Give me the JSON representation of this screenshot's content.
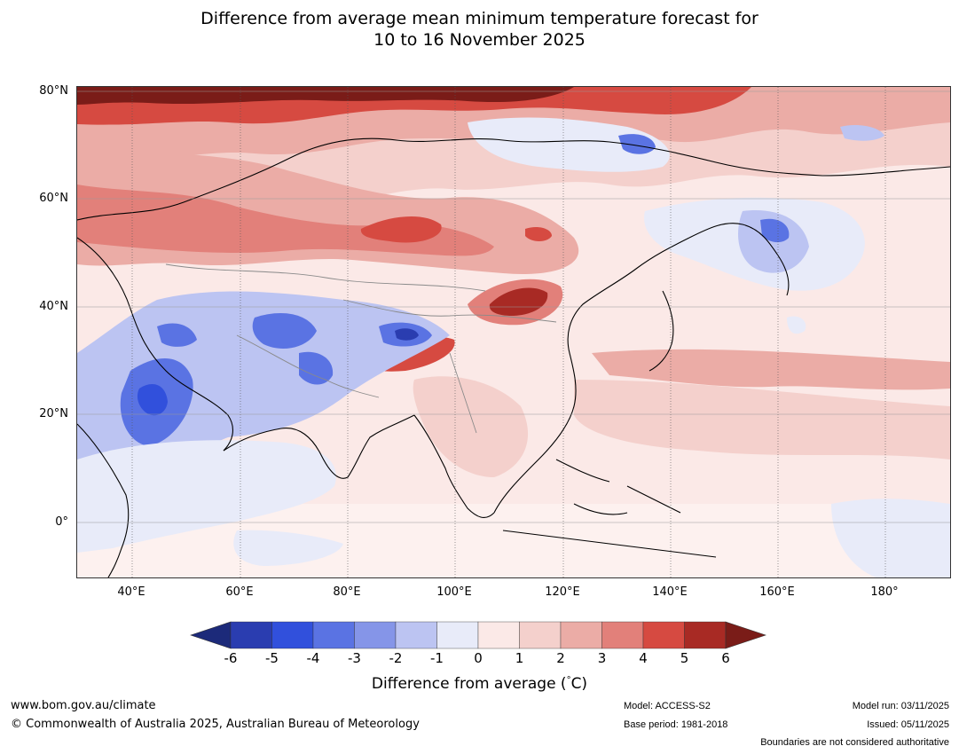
{
  "title": {
    "line1": "Difference from average mean minimum temperature forecast for",
    "line2": "10 to 16 November 2025"
  },
  "map": {
    "lat_labels": [
      "80°N",
      "60°N",
      "40°N",
      "20°N",
      "0°"
    ],
    "lon_labels": [
      "40°E",
      "60°E",
      "80°E",
      "100°E",
      "120°E",
      "140°E",
      "160°E",
      "180°"
    ]
  },
  "colorbar": {
    "ticks": [
      "-6",
      "-5",
      "-4",
      "-3",
      "-2",
      "-1",
      "0",
      "1",
      "2",
      "3",
      "4",
      "5",
      "6"
    ],
    "colors": [
      "#1c2a7a",
      "#2a3db0",
      "#3150dc",
      "#5a73e3",
      "#8595e8",
      "#bcc4f2",
      "#e8ebf9",
      "#fbe9e7",
      "#f4d0cc",
      "#ebaca6",
      "#e2807a",
      "#d64a41",
      "#a82a24",
      "#7a1c18"
    ],
    "label": "Difference from average (°C)",
    "label_prefix": "Difference from average (",
    "label_degree": "°",
    "label_unit": "C)"
  },
  "footer": {
    "website": "www.bom.gov.au/climate",
    "copyright": "© Commonwealth of Australia 2025, Australian Bureau of Meteorology",
    "model": "Model: ACCESS-S2",
    "base_period": "Base period: 1981-2018",
    "model_run": "Model run: 03/11/2025",
    "issued": "Issued: 05/11/2025",
    "disclaimer": "Boundaries are not considered authoritative"
  }
}
